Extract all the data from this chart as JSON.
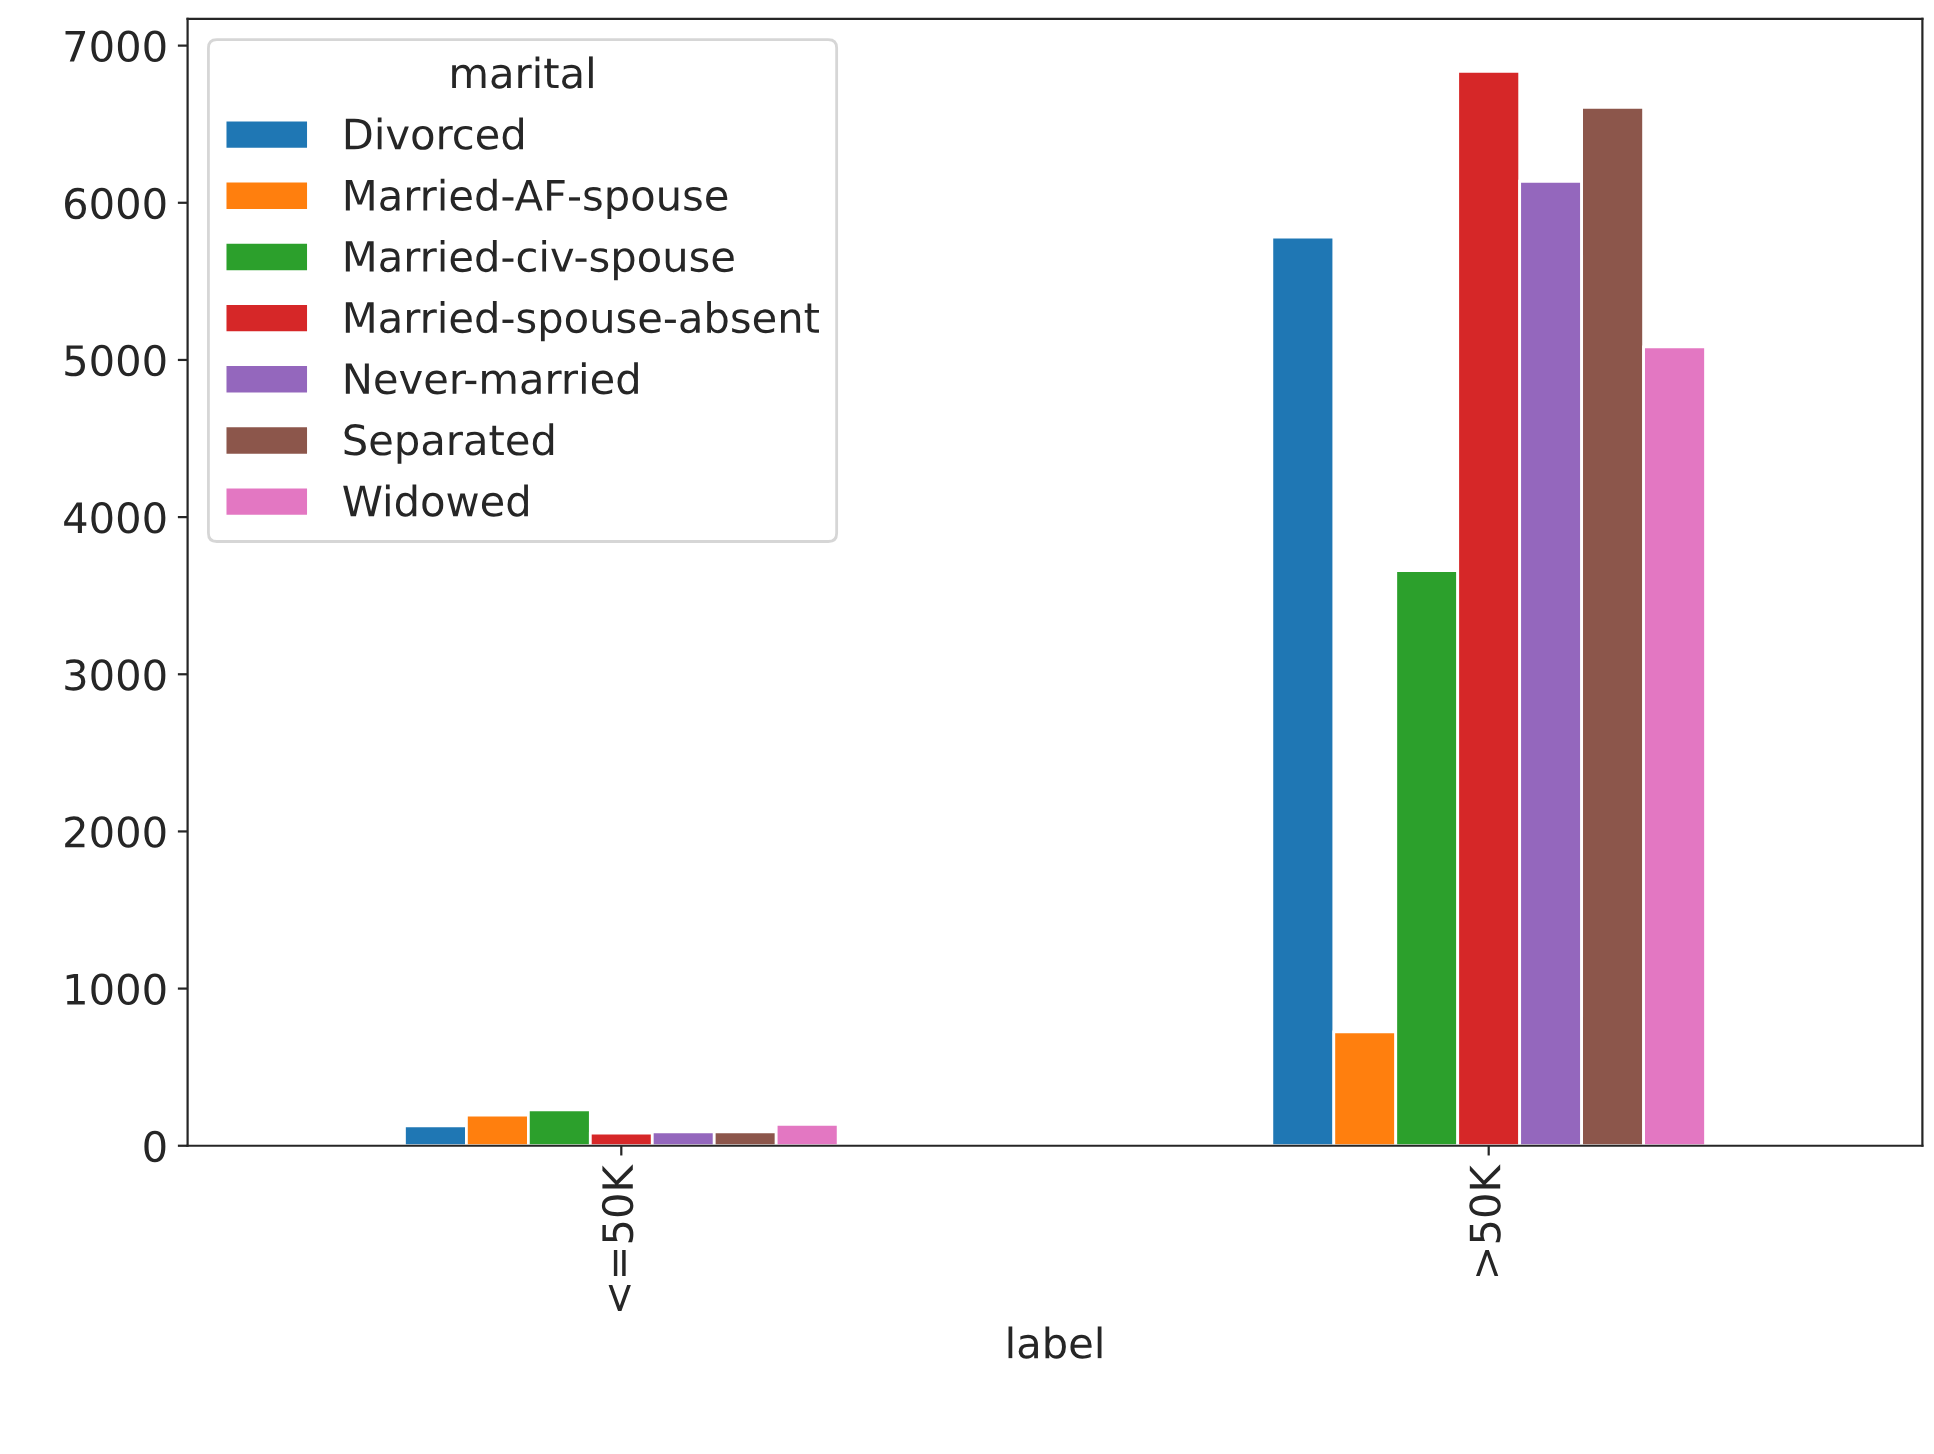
{
  "chart_data": {
    "type": "bar",
    "xlabel": "label",
    "legend_title": "marital",
    "legend": "top left",
    "grid": false,
    "categories": [
      "<=50K",
      ">50K"
    ],
    "ylim": [
      0,
      7170
    ],
    "yticks": [
      0,
      1000,
      2000,
      3000,
      4000,
      5000,
      6000,
      7000
    ],
    "series": [
      {
        "name": "Divorced",
        "color": "#1f77b4",
        "values": [
          127,
          5781
        ]
      },
      {
        "name": "Married-AF-spouse",
        "color": "#ff7f0e",
        "values": [
          195,
          724
        ]
      },
      {
        "name": "Married-civ-spouse",
        "color": "#2ca02c",
        "values": [
          229,
          3660
        ]
      },
      {
        "name": "Married-spouse-absent",
        "color": "#d62728",
        "values": [
          80,
          6836
        ]
      },
      {
        "name": "Never-married",
        "color": "#9467bd",
        "values": [
          89,
          6137
        ]
      },
      {
        "name": "Separated",
        "color": "#8c564b",
        "values": [
          89,
          6607
        ]
      },
      {
        "name": "Widowed",
        "color": "#e377c2",
        "values": [
          136,
          5083
        ]
      }
    ]
  }
}
